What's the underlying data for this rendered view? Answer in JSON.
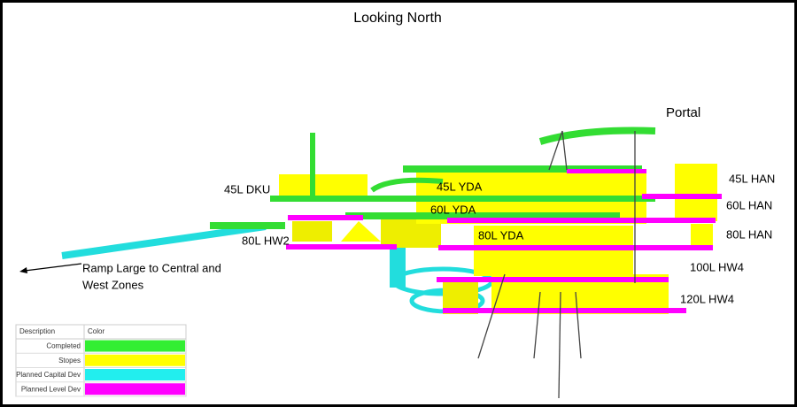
{
  "header": {
    "title": "Looking North"
  },
  "labels": {
    "portal": "Portal",
    "dku45": "45L DKU",
    "yda45": "45L YDA",
    "yda60": "60L YDA",
    "yda80": "80L YDA",
    "hw2_80": "80L HW2",
    "han45": "45L HAN",
    "han60": "60L HAN",
    "han80": "80L HAN",
    "hw4_100": "100L HW4",
    "hw4_120": "120L HW4"
  },
  "ramp_note": {
    "lines": [
      "Ramp Large to Central and",
      "West Zones"
    ]
  },
  "legend": {
    "columns": [
      "Description",
      "Color"
    ],
    "rows": [
      {
        "label": "Completed",
        "color": "#33ee33"
      },
      {
        "label": "Stopes",
        "color": "#ffff00"
      },
      {
        "label": "Planned Capital Dev",
        "color": "#22eeee"
      },
      {
        "label": "Planned Level Dev",
        "color": "#ff00ff"
      }
    ]
  }
}
